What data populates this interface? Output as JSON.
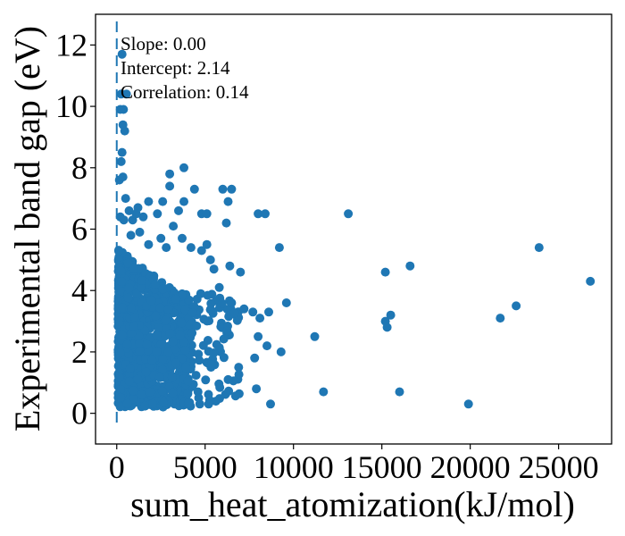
{
  "chart_data": {
    "type": "scatter",
    "xlabel": "sum_heat_atomization(kJ/mol)",
    "ylabel": "Experimental band gap (eV)",
    "xlim": [
      -1200,
      28000
    ],
    "ylim": [
      -1,
      13
    ],
    "x_ticks": [
      0,
      5000,
      10000,
      15000,
      20000,
      25000
    ],
    "y_ticks": [
      0,
      2,
      4,
      6,
      8,
      10,
      12
    ],
    "annotations": [
      "Slope: 0.00",
      "Intercept: 2.14",
      "Correlation: 0.14"
    ],
    "fit_line": {
      "style": "dashed",
      "slope": 0.0,
      "intercept": 2.14
    },
    "marker_color": "#1f77b4",
    "grid": false,
    "points": [
      [
        300,
        11.7
      ],
      [
        250,
        10.4
      ],
      [
        550,
        10.4
      ],
      [
        380,
        9.9
      ],
      [
        200,
        9.9
      ],
      [
        450,
        9.2
      ],
      [
        350,
        9.4
      ],
      [
        300,
        8.5
      ],
      [
        250,
        8.2
      ],
      [
        150,
        7.6
      ],
      [
        350,
        7.7
      ],
      [
        500,
        7.0
      ],
      [
        200,
        6.4
      ],
      [
        700,
        6.6
      ],
      [
        400,
        6.3
      ],
      [
        900,
        6.3
      ],
      [
        1200,
        6.7
      ],
      [
        1100,
        6.5
      ],
      [
        1500,
        6.4
      ],
      [
        1800,
        6.9
      ],
      [
        2300,
        6.5
      ],
      [
        2600,
        6.9
      ],
      [
        3000,
        7.8
      ],
      [
        3000,
        7.4
      ],
      [
        3800,
        8.0
      ],
      [
        3800,
        6.9
      ],
      [
        3500,
        6.6
      ],
      [
        3200,
        6.1
      ],
      [
        4400,
        7.3
      ],
      [
        4800,
        6.5
      ],
      [
        5100,
        6.5
      ],
      [
        6000,
        7.3
      ],
      [
        6500,
        7.3
      ],
      [
        6300,
        6.9
      ],
      [
        6200,
        6.2
      ],
      [
        8000,
        6.5
      ],
      [
        8400,
        6.5
      ],
      [
        13100,
        6.5
      ],
      [
        9200,
        5.4
      ],
      [
        800,
        5.8
      ],
      [
        1300,
        5.9
      ],
      [
        1800,
        5.5
      ],
      [
        2500,
        5.7
      ],
      [
        2800,
        5.4
      ],
      [
        3700,
        5.7
      ],
      [
        4200,
        5.4
      ],
      [
        4800,
        5.3
      ],
      [
        5100,
        5.5
      ],
      [
        5300,
        5.0
      ],
      [
        5500,
        4.7
      ],
      [
        6400,
        4.8
      ],
      [
        7000,
        4.6
      ],
      [
        5800,
        4.1
      ],
      [
        6500,
        3.6
      ],
      [
        7200,
        3.4
      ],
      [
        7700,
        3.3
      ],
      [
        8100,
        3.1
      ],
      [
        8600,
        3.3
      ],
      [
        9600,
        3.6
      ],
      [
        8000,
        2.5
      ],
      [
        8500,
        2.2
      ],
      [
        9300,
        2.0
      ],
      [
        7800,
        1.8
      ],
      [
        6900,
        1.5
      ],
      [
        6300,
        1.1
      ],
      [
        7900,
        0.8
      ],
      [
        8700,
        0.3
      ],
      [
        4700,
        0.3
      ],
      [
        5200,
        0.3
      ],
      [
        4600,
        0.7
      ],
      [
        11200,
        2.5
      ],
      [
        11700,
        0.7
      ],
      [
        15200,
        4.6
      ],
      [
        15200,
        3.0
      ],
      [
        15300,
        2.8
      ],
      [
        15500,
        3.2
      ],
      [
        16600,
        4.8
      ],
      [
        16000,
        0.7
      ],
      [
        19900,
        0.3
      ],
      [
        21700,
        3.1
      ],
      [
        22600,
        3.5
      ],
      [
        23900,
        5.4
      ],
      [
        26800,
        4.3
      ]
    ]
  }
}
